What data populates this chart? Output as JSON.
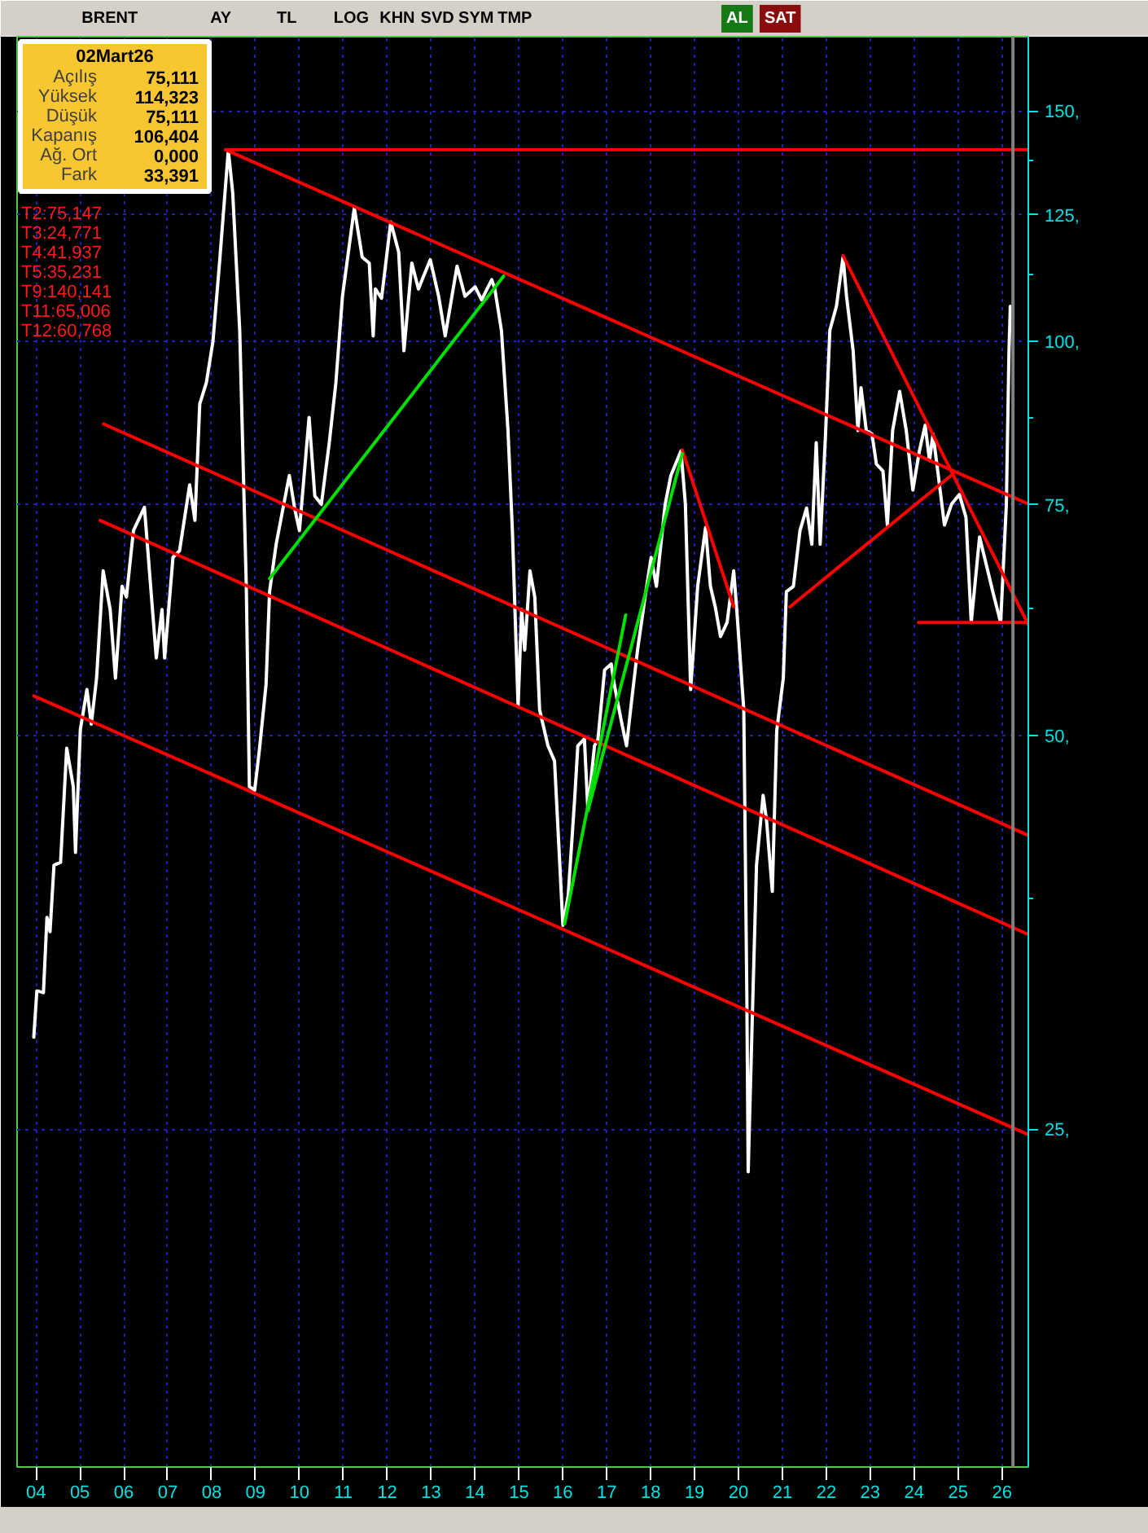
{
  "chart_data": {
    "type": "line",
    "title": "BRENT",
    "subtitle": "02Mart26",
    "log": true,
    "grid": true,
    "xlim": [
      2003.57,
      2026.6
    ],
    "ylim": [
      13.8,
      171
    ],
    "xticks": [
      {
        "value": 2004,
        "label": "04"
      },
      {
        "value": 2005,
        "label": "05"
      },
      {
        "value": 2006,
        "label": "06"
      },
      {
        "value": 2007,
        "label": "07"
      },
      {
        "value": 2008,
        "label": "08"
      },
      {
        "value": 2009,
        "label": "09"
      },
      {
        "value": 2010,
        "label": "10"
      },
      {
        "value": 2011,
        "label": "11"
      },
      {
        "value": 2012,
        "label": "12"
      },
      {
        "value": 2013,
        "label": "13"
      },
      {
        "value": 2014,
        "label": "14"
      },
      {
        "value": 2015,
        "label": "15"
      },
      {
        "value": 2016,
        "label": "16"
      },
      {
        "value": 2017,
        "label": "17"
      },
      {
        "value": 2018,
        "label": "18"
      },
      {
        "value": 2019,
        "label": "19"
      },
      {
        "value": 2020,
        "label": "20"
      },
      {
        "value": 2021,
        "label": "21"
      },
      {
        "value": 2022,
        "label": "22"
      },
      {
        "value": 2023,
        "label": "23"
      },
      {
        "value": 2024,
        "label": "24"
      },
      {
        "value": 2025,
        "label": "25"
      },
      {
        "value": 2026,
        "label": "26"
      }
    ],
    "yticks": [
      {
        "value": 25,
        "label": "25,"
      },
      {
        "value": 37.5,
        "label": null
      },
      {
        "value": 50,
        "label": "50,"
      },
      {
        "value": 62.5,
        "label": null
      },
      {
        "value": 75,
        "label": "75,"
      },
      {
        "value": 87.5,
        "label": null
      },
      {
        "value": 100,
        "label": "100,"
      },
      {
        "value": 112.5,
        "label": null
      },
      {
        "value": 125,
        "label": "125,"
      },
      {
        "value": 137.5,
        "label": null
      },
      {
        "value": 150,
        "label": "150,"
      }
    ],
    "series": [
      {
        "color": "#ffffff",
        "x": [
          2003.95,
          2004.02,
          2004.17,
          2004.25,
          2004.32,
          2004.41,
          2004.56,
          2004.7,
          2004.85,
          2004.9,
          2005.01,
          2005.16,
          2005.26,
          2005.38,
          2005.53,
          2005.69,
          2005.81,
          2005.96,
          2006.06,
          2006.22,
          2006.47,
          2006.74,
          2006.87,
          2006.93,
          2007.12,
          2007.27,
          2007.5,
          2007.62,
          2007.73,
          2007.88,
          2008.03,
          2008.18,
          2008.38,
          2008.48,
          2008.64,
          2008.79,
          2008.86,
          2008.98,
          2009.09,
          2009.24,
          2009.32,
          2009.47,
          2009.77,
          2009.89,
          2010.0,
          2010.22,
          2010.35,
          2010.5,
          2010.68,
          2010.83,
          2010.98,
          2011.25,
          2011.43,
          2011.59,
          2011.68,
          2011.73,
          2011.87,
          2012.08,
          2012.26,
          2012.38,
          2012.56,
          2012.71,
          2012.98,
          2013.17,
          2013.32,
          2013.59,
          2013.77,
          2014.0,
          2014.15,
          2014.38,
          2014.45,
          2014.6,
          2014.75,
          2014.85,
          2014.98,
          2015.06,
          2015.13,
          2015.25,
          2015.36,
          2015.47,
          2015.66,
          2015.81,
          2016.0,
          2016.12,
          2016.27,
          2016.34,
          2016.49,
          2016.57,
          2016.72,
          2016.8,
          2016.95,
          2017.1,
          2017.17,
          2017.33,
          2017.45,
          2017.55,
          2017.7,
          2017.89,
          2018.01,
          2018.13,
          2018.33,
          2018.46,
          2018.69,
          2018.79,
          2018.91,
          2019.07,
          2019.25,
          2019.36,
          2019.47,
          2019.59,
          2019.74,
          2019.89,
          2019.96,
          2020.12,
          2020.19,
          2020.22,
          2020.31,
          2020.41,
          2020.56,
          2020.64,
          2020.77,
          2020.87,
          2021.02,
          2021.09,
          2021.25,
          2021.4,
          2021.55,
          2021.67,
          2021.77,
          2021.86,
          2021.98,
          2022.08,
          2022.23,
          2022.38,
          2022.46,
          2022.61,
          2022.72,
          2022.79,
          2022.91,
          2023.04,
          2023.14,
          2023.29,
          2023.39,
          2023.51,
          2023.67,
          2023.82,
          2023.97,
          2024.12,
          2024.25,
          2024.35,
          2024.43,
          2024.55,
          2024.69,
          2024.85,
          2025.03,
          2025.18,
          2025.3,
          2025.49,
          2025.64,
          2025.79,
          2025.97,
          2026.1,
          2026.16,
          2026.19
        ],
        "values": [
          29.4,
          31.9,
          31.8,
          36.3,
          35.4,
          39.8,
          40.0,
          48.9,
          45.7,
          40.7,
          50.5,
          54.2,
          51.0,
          55.3,
          66.8,
          62.4,
          55.3,
          65.0,
          63.8,
          71.7,
          74.7,
          57.3,
          62.4,
          57.3,
          68.4,
          69.2,
          77.7,
          73.0,
          89.6,
          93.0,
          100.0,
          114.8,
          140.0,
          130.0,
          102.0,
          65.0,
          45.7,
          45.4,
          48.8,
          54.7,
          64.4,
          70.0,
          79.0,
          74.6,
          71.7,
          87.5,
          76.2,
          75.1,
          83.7,
          93.0,
          108.3,
          126.5,
          116.0,
          114.8,
          101.0,
          109.7,
          107.9,
          123.4,
          117.1,
          98.4,
          114.8,
          109.7,
          115.5,
          108.3,
          101.0,
          114.2,
          108.3,
          110.1,
          107.6,
          111.5,
          109.7,
          102.0,
          85.5,
          71.7,
          52.6,
          62.4,
          58.1,
          66.8,
          63.8,
          52.3,
          49.1,
          47.8,
          35.8,
          37.7,
          44.8,
          49.1,
          49.7,
          43.8,
          49.1,
          49.7,
          56.1,
          56.7,
          54.7,
          51.3,
          49.1,
          52.6,
          58.1,
          64.4,
          68.4,
          65.0,
          75.1,
          79.0,
          82.5,
          75.1,
          54.2,
          65.0,
          72.1,
          65.0,
          62.7,
          59.5,
          61.0,
          66.8,
          62.4,
          52.3,
          31.5,
          23.2,
          30.1,
          39.8,
          45.0,
          43.0,
          38.0,
          50.4,
          55.3,
          64.4,
          65.0,
          71.7,
          74.6,
          70.0,
          83.7,
          70.0,
          84.7,
          102.0,
          106.4,
          116.0,
          108.3,
          98.4,
          85.5,
          92.2,
          85.5,
          85.0,
          80.6,
          79.6,
          72.4,
          85.5,
          91.6,
          85.5,
          77.0,
          82.5,
          86.3,
          81.1,
          85.0,
          79.0,
          72.4,
          75.1,
          76.4,
          73.4,
          61.0,
          70.9,
          67.6,
          64.4,
          61.0,
          75.1,
          98.4,
          106.4
        ]
      },
      {
        "color": "#ff0000",
        "x": [
          2008.32,
          2026.6
        ],
        "values": [
          140.141,
          140.141
        ]
      },
      {
        "color": "#ff0000",
        "x": [
          2008.32,
          2026.6
        ],
        "values": [
          140.141,
          75.147
        ]
      },
      {
        "color": "#ff0000",
        "x": [
          2005.54,
          2026.6
        ],
        "values": [
          86.5,
          41.937
        ]
      },
      {
        "color": "#ff0000",
        "x": [
          2005.46,
          2026.6
        ],
        "values": [
          73.0,
          35.231
        ]
      },
      {
        "color": "#ff0000",
        "x": [
          2003.95,
          2026.6
        ],
        "values": [
          53.6,
          24.771
        ]
      },
      {
        "color": "#ff0000",
        "x": [
          2018.72,
          2019.89
        ],
        "values": [
          82.6,
          62.7
        ]
      },
      {
        "color": "#ff0000",
        "x": [
          2021.17,
          2024.88
        ],
        "values": [
          62.7,
          79.2
        ]
      },
      {
        "color": "#ff0000",
        "x": [
          2022.38,
          2026.6
        ],
        "values": [
          116.3,
          60.768
        ]
      },
      {
        "color": "#ff0000",
        "x": [
          2024.1,
          2026.6
        ],
        "values": [
          61.0,
          61.0
        ]
      },
      {
        "color": "#00e000",
        "x": [
          2009.32,
          2014.65
        ],
        "values": [
          65.9,
          112.2
        ]
      },
      {
        "color": "#00e000",
        "x": [
          2016.04,
          2017.43
        ],
        "values": [
          35.9,
          61.8
        ]
      },
      {
        "color": "#00e000",
        "x": [
          2016.57,
          2018.72
        ],
        "values": [
          43.8,
          82.1
        ]
      }
    ],
    "ref_lines": [
      {
        "axis": "x",
        "value": 2026.25,
        "color": "#808080"
      }
    ],
    "annotations": [
      "AY",
      "TL",
      "LOG",
      "KHN",
      "SVD",
      "SYM",
      "TMP",
      "AL",
      "SAT",
      "Açılış",
      "75,111",
      "Yüksek",
      "114,323",
      "Düşük",
      "75,111",
      "Kapanış",
      "106,404",
      "Ağ. Ort",
      "0,000",
      "Fark",
      "33,391",
      "T2:75,147",
      "T3:24,771",
      "T4:41,937",
      "T5:35,231",
      "T9:140,141",
      "T11:65,006",
      "T12:60,768"
    ]
  }
}
